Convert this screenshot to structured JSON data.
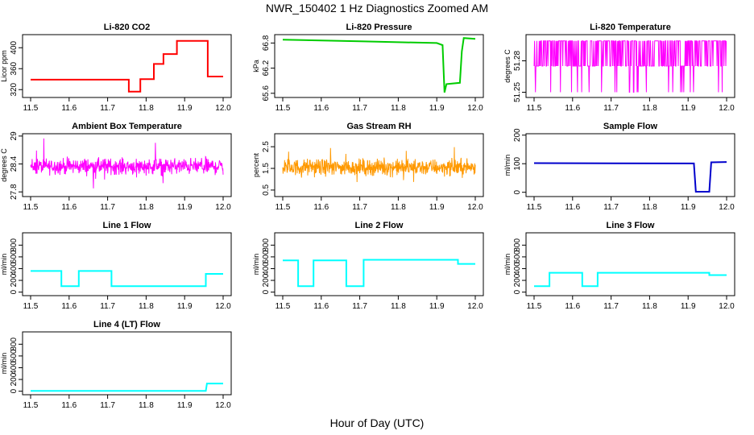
{
  "figure": {
    "title": "NWR_150402  1 Hz Diagnostics Zoomed AM",
    "xlabel": "Hour of Day (UTC)"
  },
  "chart_data": [
    {
      "type": "line",
      "title": "Li-820 CO2",
      "ylabel": "Licor ppm",
      "color": "#ff0000",
      "xlim": [
        11.5,
        12.0
      ],
      "ylim": [
        305,
        425
      ],
      "xticks": [
        "11.5",
        "11.6",
        "11.7",
        "11.8",
        "11.9",
        "12.0"
      ],
      "yticks": [
        320,
        360,
        400
      ],
      "x": [
        11.5,
        11.755,
        11.755,
        11.785,
        11.785,
        11.82,
        11.82,
        11.845,
        11.845,
        11.88,
        11.88,
        11.96,
        11.96,
        12.0
      ],
      "y": [
        339,
        339,
        316,
        316,
        340,
        340,
        369,
        369,
        388,
        388,
        413,
        413,
        345,
        345
      ]
    },
    {
      "type": "line",
      "title": "Li-820 Pressure",
      "ylabel": "kPa",
      "color": "#00cc00",
      "xlim": [
        11.5,
        12.0
      ],
      "ylim": [
        65.5,
        67.0
      ],
      "xticks": [
        "11.5",
        "11.6",
        "11.7",
        "11.8",
        "11.9",
        "12.0"
      ],
      "yticks": [
        65.6,
        66.2,
        66.8
      ],
      "x": [
        11.5,
        11.6,
        11.7,
        11.8,
        11.9,
        11.915,
        11.92,
        11.925,
        11.96,
        11.965,
        11.97,
        12.0
      ],
      "y": [
        66.88,
        66.86,
        66.84,
        66.82,
        66.8,
        66.75,
        65.62,
        65.82,
        65.85,
        66.6,
        66.92,
        66.9
      ]
    },
    {
      "type": "line",
      "title": "Li-820 Temperature",
      "ylabel": "degrees C",
      "color": "#ff00ff",
      "xlim": [
        11.5,
        12.0
      ],
      "ylim": [
        51.245,
        51.305
      ],
      "xticks": [
        "11.5",
        "11.6",
        "11.7",
        "11.8",
        "11.9",
        "12.0"
      ],
      "yticks": [
        51.25,
        51.28
      ],
      "y_high": 51.299,
      "y_mid": 51.275,
      "y_low": 51.25
    },
    {
      "type": "line",
      "title": "Ambient Box Temperature",
      "ylabel": "degrees C",
      "color": "#ff00ff",
      "xlim": [
        11.5,
        12.0
      ],
      "ylim": [
        27.7,
        29.05
      ],
      "xticks": [
        "11.5",
        "11.6",
        "11.7",
        "11.8",
        "11.9",
        "12.0"
      ],
      "yticks": [
        27.8,
        28.4,
        29.0
      ],
      "center": 28.35,
      "spread": 0.25
    },
    {
      "type": "line",
      "title": "Gas Stream RH",
      "ylabel": "percent",
      "color": "#ff9900",
      "xlim": [
        11.5,
        12.0
      ],
      "ylim": [
        0.2,
        3.1
      ],
      "xticks": [
        "11.5",
        "11.6",
        "11.7",
        "11.8",
        "11.9",
        "12.0"
      ],
      "yticks": [
        0.5,
        1.5,
        2.5
      ],
      "center": 1.55,
      "spread": 0.55
    },
    {
      "type": "line",
      "title": "Sample Flow",
      "ylabel": "ml/min",
      "color": "#0000cc",
      "xlim": [
        11.5,
        12.0
      ],
      "ylim": [
        -15,
        205
      ],
      "xticks": [
        "11.5",
        "11.6",
        "11.7",
        "11.8",
        "11.9",
        "12.0"
      ],
      "yticks": [
        0,
        100,
        200
      ],
      "x": [
        11.5,
        11.915,
        11.92,
        11.955,
        11.96,
        12.0
      ],
      "y": [
        102,
        101,
        2,
        2,
        105,
        106
      ]
    },
    {
      "type": "line",
      "title": "Line 1 Flow",
      "ylabel": "ml/min",
      "color": "#00ffff",
      "xlim": [
        11.5,
        12.0
      ],
      "ylim": [
        -60,
        1010
      ],
      "xticks": [
        "11.5",
        "11.6",
        "11.7",
        "11.8",
        "11.9",
        "12.0"
      ],
      "yticks": [
        0,
        200,
        400,
        600,
        800
      ],
      "x": [
        11.5,
        11.58,
        11.58,
        11.625,
        11.625,
        11.71,
        11.71,
        11.955,
        11.955,
        12.0
      ],
      "y": [
        360,
        360,
        100,
        100,
        360,
        360,
        100,
        100,
        310,
        310
      ]
    },
    {
      "type": "line",
      "title": "Line 2 Flow",
      "ylabel": "ml/min",
      "color": "#00ffff",
      "xlim": [
        11.5,
        12.0
      ],
      "ylim": [
        -60,
        1010
      ],
      "xticks": [
        "11.5",
        "11.6",
        "11.7",
        "11.8",
        "11.9",
        "12.0"
      ],
      "yticks": [
        0,
        200,
        400,
        600,
        800
      ],
      "x": [
        11.5,
        11.54,
        11.54,
        11.58,
        11.58,
        11.665,
        11.665,
        11.71,
        11.71,
        11.955,
        11.955,
        12.0
      ],
      "y": [
        540,
        540,
        100,
        100,
        540,
        540,
        100,
        100,
        550,
        550,
        480,
        480
      ]
    },
    {
      "type": "line",
      "title": "Line 3 Flow",
      "ylabel": "ml/min",
      "color": "#00ffff",
      "xlim": [
        11.5,
        12.0
      ],
      "ylim": [
        -60,
        1010
      ],
      "xticks": [
        "11.5",
        "11.6",
        "11.7",
        "11.8",
        "11.9",
        "12.0"
      ],
      "yticks": [
        0,
        200,
        400,
        600,
        800
      ],
      "x": [
        11.5,
        11.54,
        11.54,
        11.625,
        11.625,
        11.665,
        11.665,
        11.955,
        11.955,
        12.0
      ],
      "y": [
        100,
        100,
        330,
        330,
        100,
        100,
        330,
        330,
        290,
        290
      ]
    },
    {
      "type": "line",
      "title": "Line 4 (LT) Flow",
      "ylabel": "ml/min",
      "color": "#00ffff",
      "xlim": [
        11.5,
        12.0
      ],
      "ylim": [
        -60,
        1010
      ],
      "xticks": [
        "11.5",
        "11.6",
        "11.7",
        "11.8",
        "11.9",
        "12.0"
      ],
      "yticks": [
        0,
        200,
        400,
        600,
        800
      ],
      "x": [
        11.5,
        11.955,
        11.958,
        12.0
      ],
      "y": [
        5,
        5,
        130,
        130
      ]
    }
  ]
}
